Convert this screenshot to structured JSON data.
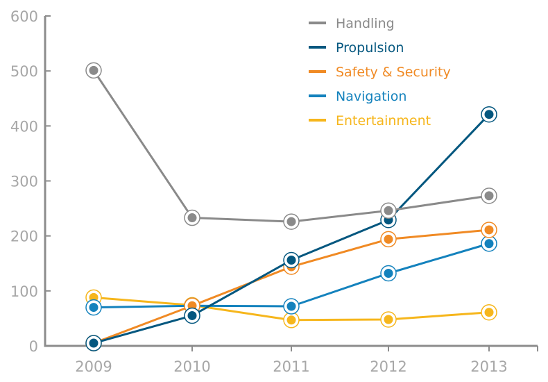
{
  "chart_data": {
    "type": "line",
    "title": "",
    "xlabel": "",
    "ylabel": "",
    "categories": [
      "2009",
      "2010",
      "2011",
      "2012",
      "2013"
    ],
    "ylim": [
      0,
      600
    ],
    "yticks": [
      0,
      100,
      200,
      300,
      400,
      500,
      600
    ],
    "grid": false,
    "legend_position": "top-right",
    "axis_color": "#8c8c8c",
    "tick_label_color": "#a7a7a7",
    "series": [
      {
        "name": "Handling",
        "color": "#8a8a8a",
        "values": [
          501,
          233,
          226,
          246,
          273
        ]
      },
      {
        "name": "Propulsion",
        "color": "#04577f",
        "values": [
          5,
          55,
          156,
          229,
          421
        ]
      },
      {
        "name": "Safety & Security",
        "color": "#f08a24",
        "values": [
          5,
          73,
          144,
          194,
          211
        ]
      },
      {
        "name": "Navigation",
        "color": "#1482bd",
        "values": [
          70,
          73,
          72,
          132,
          186
        ]
      },
      {
        "name": "Entertainment",
        "color": "#f6b61c",
        "values": [
          88,
          74,
          47,
          48,
          61
        ]
      }
    ]
  }
}
